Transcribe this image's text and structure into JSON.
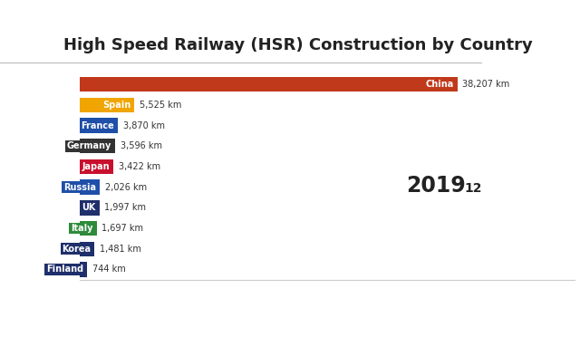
{
  "chart_data": {
    "type": "bar",
    "orientation": "horizontal",
    "title": "High Speed Railway (HSR) Construction by Country",
    "categories": [
      "China",
      "Spain",
      "France",
      "Germany",
      "Japan",
      "Russia",
      "UK",
      "Italy",
      "Korea",
      "Finland"
    ],
    "values": [
      38207,
      5525,
      3870,
      3596,
      3422,
      2026,
      1997,
      1697,
      1481,
      744
    ],
    "value_labels": [
      "38,207 km",
      "5,525 km",
      "3,870 km",
      "3,596 km",
      "3,422 km",
      "2,026 km",
      "1,997 km",
      "1,697 km",
      "1,481 km",
      "744 km"
    ],
    "colors": [
      "#c1391b",
      "#f0a500",
      "#1f4fa8",
      "#333333",
      "#c8102e",
      "#1f4fa8",
      "#1f2f6b",
      "#2e8b3a",
      "#1f2f6b",
      "#1f2f6b"
    ],
    "xlim": [
      0,
      50000
    ],
    "tick_labels": false,
    "data_labels": true,
    "grid": false,
    "annotations": [
      "2019",
      "12"
    ]
  }
}
